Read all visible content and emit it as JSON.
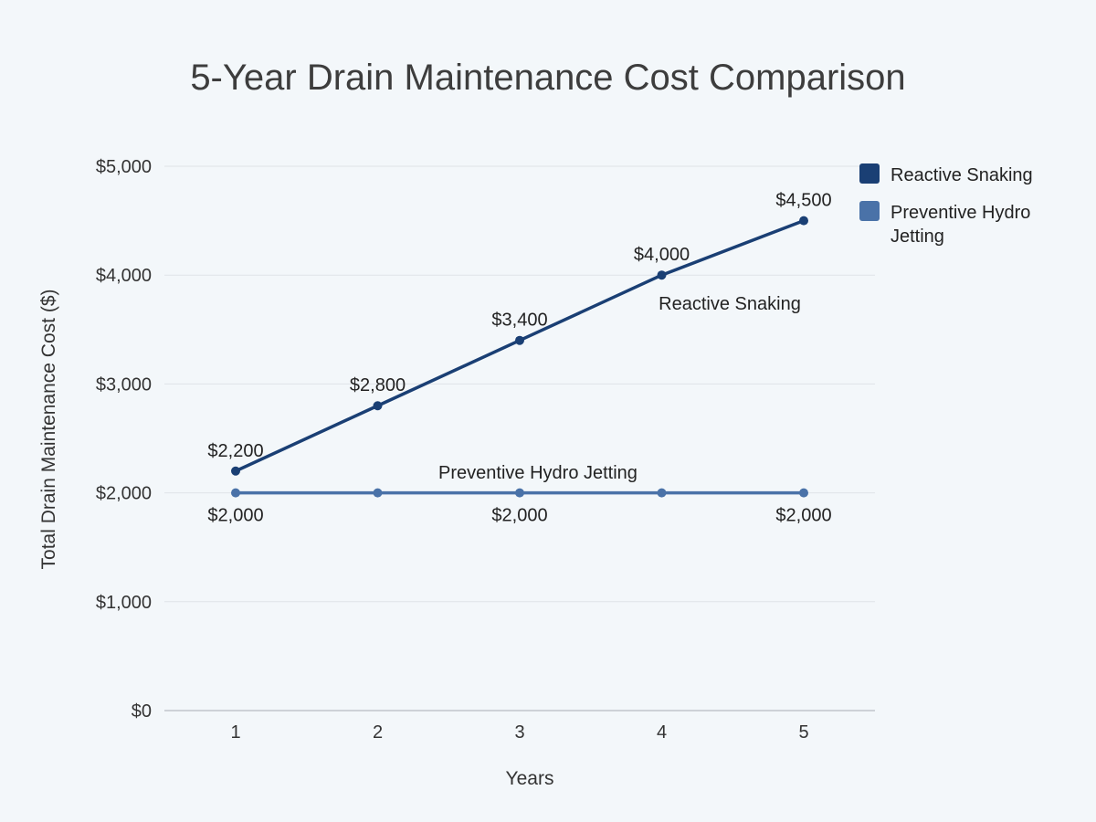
{
  "chart_data": {
    "type": "line",
    "title": "5-Year Drain Maintenance Cost Comparison",
    "xlabel": "Years",
    "ylabel": "Total Drain Maintenance Cost ($)",
    "categories": [
      "1",
      "2",
      "3",
      "4",
      "5"
    ],
    "ylim": [
      0,
      5000
    ],
    "yticks": [
      0,
      1000,
      2000,
      3000,
      4000,
      5000
    ],
    "ytick_labels": [
      "$0",
      "$1,000",
      "$2,000",
      "$3,000",
      "$4,000",
      "$5,000"
    ],
    "grid": true,
    "legend_position": "right",
    "series": [
      {
        "name": "Reactive Snaking",
        "color": "#1a3f74",
        "values": [
          2200,
          2800,
          3400,
          4000,
          4500
        ],
        "data_labels": [
          "$2,200",
          "$2,800",
          "$3,400",
          "$4,000",
          "$4,500"
        ],
        "inline_label": "Reactive Snaking"
      },
      {
        "name": "Preventive Hydro Jetting",
        "legend_lines": [
          "Preventive Hydro",
          "Jetting"
        ],
        "color": "#4a72a8",
        "values": [
          2000,
          2000,
          2000,
          2000,
          2000
        ],
        "data_labels": [
          "$2,000",
          "",
          "$2,000",
          "",
          "$2,000"
        ],
        "inline_label": "Preventive Hydro Jetting"
      }
    ]
  }
}
